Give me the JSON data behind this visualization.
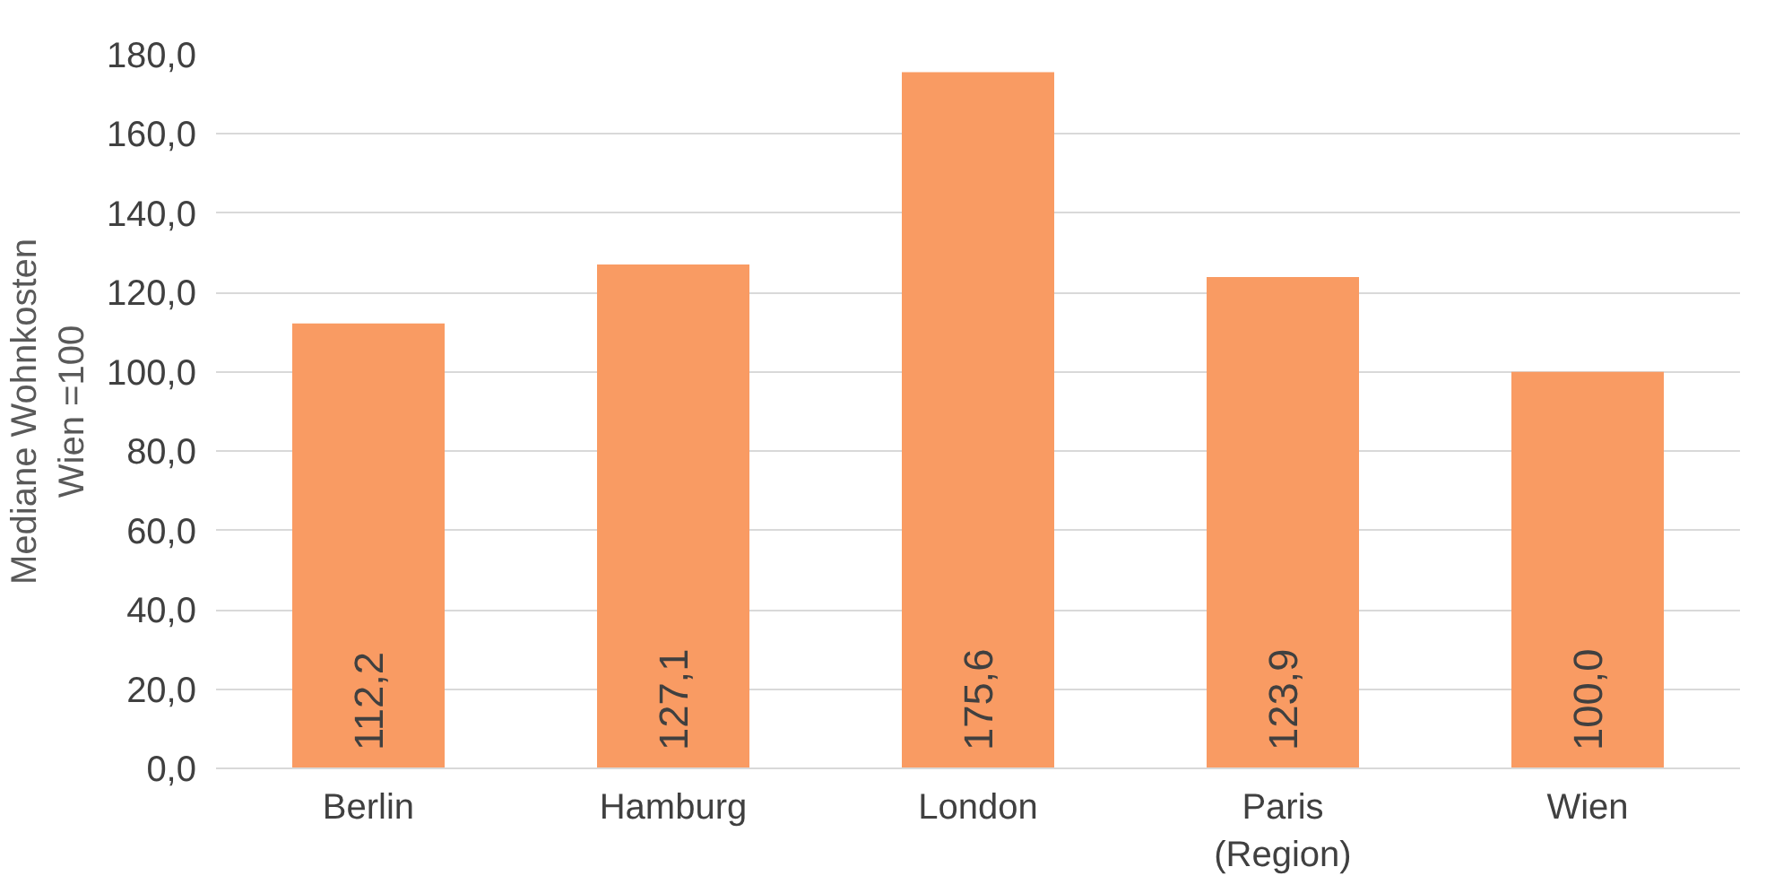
{
  "chart_data": {
    "type": "bar",
    "ylabel": "Mediane Wohnkosten\nWien =100",
    "categories": [
      "Berlin",
      "Hamburg",
      "London",
      "Paris (Region)",
      "Wien"
    ],
    "values": [
      112.2,
      127.1,
      175.6,
      123.9,
      100.0
    ],
    "value_labels": [
      "112,2",
      "127,1",
      "175,6",
      "123,9",
      "100,0"
    ],
    "color": "#f99b63",
    "ylim": [
      0,
      180
    ],
    "yticks": [
      {
        "value": 0,
        "label": "0,0"
      },
      {
        "value": 20,
        "label": "20,0"
      },
      {
        "value": 40,
        "label": "40,0"
      },
      {
        "value": 60,
        "label": "60,0"
      },
      {
        "value": 80,
        "label": "80,0"
      },
      {
        "value": 100,
        "label": "100,0"
      },
      {
        "value": 120,
        "label": "120,0"
      },
      {
        "value": 140,
        "label": "140,0"
      },
      {
        "value": 160,
        "label": "160,0"
      },
      {
        "value": 180,
        "label": "180,0"
      }
    ],
    "grid": "y"
  }
}
